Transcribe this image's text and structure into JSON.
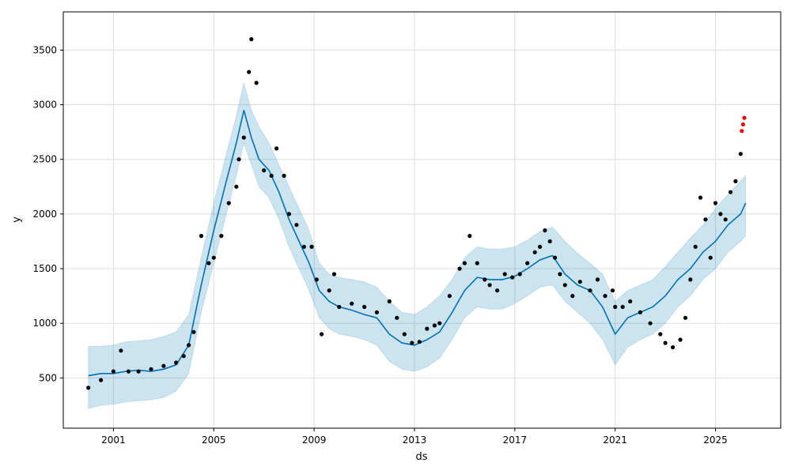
{
  "chart_data": {
    "type": "line",
    "title": "",
    "xlabel": "ds",
    "ylabel": "y",
    "x_ticks": [
      "2001",
      "2005",
      "2009",
      "2013",
      "2017",
      "2021",
      "2025"
    ],
    "x_tick_years": [
      2001,
      2005,
      2009,
      2013,
      2017,
      2021,
      2025
    ],
    "y_ticks": [
      500,
      1000,
      1500,
      2000,
      2500,
      3000,
      3500
    ],
    "xlim": [
      1999.0,
      2027.6
    ],
    "ylim": [
      40,
      3850
    ],
    "grid": true,
    "legend": "none",
    "colors": {
      "observed": "#000000",
      "forecast": "#0072b2",
      "interval": "#0072b2",
      "interval_opacity": 0.2,
      "highlight": "#ff0000",
      "grid": "#dddddd"
    },
    "series": [
      {
        "kind": "scatter",
        "role": "observed",
        "x": [
          2000.0,
          2000.5,
          2001.0,
          2001.3,
          2001.6,
          2002.0,
          2002.5,
          2003.0,
          2003.5,
          2003.8,
          2004.0,
          2004.2,
          2004.5,
          2004.8,
          2005.0,
          2005.3,
          2005.6,
          2005.9,
          2006.0,
          2006.2,
          2006.4,
          2006.5,
          2006.7,
          2007.0,
          2007.3,
          2007.5,
          2007.8,
          2008.0,
          2008.3,
          2008.6,
          2008.9,
          2009.1,
          2009.3,
          2009.6,
          2009.8,
          2010.0,
          2010.5,
          2011.0,
          2011.5,
          2012.0,
          2012.3,
          2012.6,
          2012.9,
          2013.2,
          2013.5,
          2013.8,
          2014.0,
          2014.4,
          2014.8,
          2015.0,
          2015.2,
          2015.5,
          2015.8,
          2016.0,
          2016.3,
          2016.6,
          2016.9,
          2017.2,
          2017.5,
          2017.8,
          2018.0,
          2018.2,
          2018.4,
          2018.6,
          2018.8,
          2019.0,
          2019.3,
          2019.6,
          2020.0,
          2020.3,
          2020.6,
          2020.9,
          2021.0,
          2021.3,
          2021.6,
          2022.0,
          2022.4,
          2022.8,
          2023.0,
          2023.3,
          2023.6,
          2023.8,
          2024.0,
          2024.2,
          2024.4,
          2024.6,
          2024.8,
          2025.0,
          2025.2,
          2025.4,
          2025.6,
          2025.8,
          2026.0
        ],
        "values": [
          410,
          480,
          560,
          750,
          560,
          560,
          580,
          610,
          640,
          700,
          800,
          920,
          1800,
          1550,
          1600,
          1800,
          2100,
          2250,
          2500,
          2700,
          3300,
          3600,
          3200,
          2400,
          2350,
          2600,
          2350,
          2000,
          1900,
          1700,
          1700,
          1400,
          900,
          1300,
          1450,
          1150,
          1180,
          1150,
          1100,
          1200,
          1050,
          900,
          820,
          830,
          950,
          980,
          1000,
          1250,
          1500,
          1550,
          1800,
          1550,
          1400,
          1350,
          1300,
          1450,
          1420,
          1450,
          1550,
          1650,
          1700,
          1850,
          1750,
          1600,
          1450,
          1350,
          1250,
          1380,
          1300,
          1400,
          1250,
          1300,
          1150,
          1150,
          1200,
          1100,
          1000,
          900,
          820,
          780,
          850,
          1050,
          1400,
          1700,
          2150,
          1950,
          1600,
          2100,
          2000,
          1950,
          2200,
          2300,
          2550
        ],
        "highlight_x": [
          2026.05,
          2026.1,
          2026.15
        ],
        "highlight_values": [
          2760,
          2820,
          2880
        ]
      },
      {
        "kind": "line",
        "role": "forecast",
        "x": [
          2000.0,
          2000.5,
          2001.0,
          2001.5,
          2002.0,
          2002.5,
          2003.0,
          2003.5,
          2004.0,
          2004.5,
          2005.0,
          2005.5,
          2005.9,
          2006.2,
          2006.5,
          2006.8,
          2007.2,
          2007.6,
          2008.0,
          2008.4,
          2008.8,
          2009.2,
          2009.6,
          2010.0,
          2010.5,
          2011.0,
          2011.5,
          2012.0,
          2012.5,
          2013.0,
          2013.5,
          2014.0,
          2014.5,
          2015.0,
          2015.5,
          2016.0,
          2016.5,
          2017.0,
          2017.5,
          2018.0,
          2018.5,
          2019.0,
          2019.5,
          2020.0,
          2020.5,
          2021.0,
          2021.5,
          2022.0,
          2022.5,
          2023.0,
          2023.5,
          2024.0,
          2024.5,
          2025.0,
          2025.5,
          2026.0,
          2026.2
        ],
        "values": [
          520,
          540,
          540,
          560,
          570,
          560,
          580,
          620,
          800,
          1350,
          1850,
          2300,
          2650,
          2950,
          2700,
          2500,
          2400,
          2200,
          1950,
          1750,
          1550,
          1300,
          1200,
          1150,
          1120,
          1080,
          1050,
          900,
          820,
          800,
          850,
          920,
          1100,
          1300,
          1420,
          1400,
          1400,
          1430,
          1500,
          1580,
          1620,
          1450,
          1350,
          1300,
          1150,
          900,
          1050,
          1100,
          1150,
          1250,
          1400,
          1500,
          1650,
          1750,
          1900,
          2000,
          2100
        ]
      },
      {
        "kind": "band",
        "role": "interval",
        "x": [
          2000.0,
          2000.5,
          2001.0,
          2001.5,
          2002.0,
          2002.5,
          2003.0,
          2003.5,
          2004.0,
          2004.5,
          2005.0,
          2005.5,
          2005.9,
          2006.2,
          2006.5,
          2006.8,
          2007.2,
          2007.6,
          2008.0,
          2008.4,
          2008.8,
          2009.2,
          2009.6,
          2010.0,
          2010.5,
          2011.0,
          2011.5,
          2012.0,
          2012.5,
          2013.0,
          2013.5,
          2014.0,
          2014.5,
          2015.0,
          2015.5,
          2016.0,
          2016.5,
          2017.0,
          2017.5,
          2018.0,
          2018.5,
          2019.0,
          2019.5,
          2020.0,
          2020.5,
          2021.0,
          2021.5,
          2022.0,
          2022.5,
          2023.0,
          2023.5,
          2024.0,
          2024.5,
          2025.0,
          2025.5,
          2026.0,
          2026.2
        ],
        "upper": [
          790,
          790,
          800,
          830,
          840,
          850,
          880,
          920,
          1080,
          1600,
          2100,
          2550,
          2900,
          3200,
          2950,
          2800,
          2650,
          2450,
          2250,
          2050,
          1850,
          1550,
          1450,
          1420,
          1400,
          1380,
          1330,
          1200,
          1100,
          1080,
          1150,
          1250,
          1400,
          1600,
          1700,
          1680,
          1680,
          1700,
          1760,
          1840,
          1880,
          1750,
          1640,
          1550,
          1450,
          1200,
          1300,
          1350,
          1400,
          1520,
          1650,
          1780,
          1900,
          2050,
          2180,
          2300,
          2350
        ],
        "lower": [
          220,
          250,
          260,
          280,
          290,
          300,
          320,
          380,
          540,
          1100,
          1550,
          2000,
          2350,
          2650,
          2450,
          2250,
          2150,
          1950,
          1700,
          1500,
          1300,
          1050,
          950,
          900,
          880,
          850,
          800,
          650,
          580,
          560,
          600,
          680,
          850,
          1050,
          1150,
          1130,
          1130,
          1180,
          1250,
          1330,
          1350,
          1200,
          1100,
          1000,
          850,
          620,
          780,
          850,
          900,
          1000,
          1150,
          1250,
          1400,
          1500,
          1650,
          1750,
          1800
        ]
      }
    ]
  }
}
